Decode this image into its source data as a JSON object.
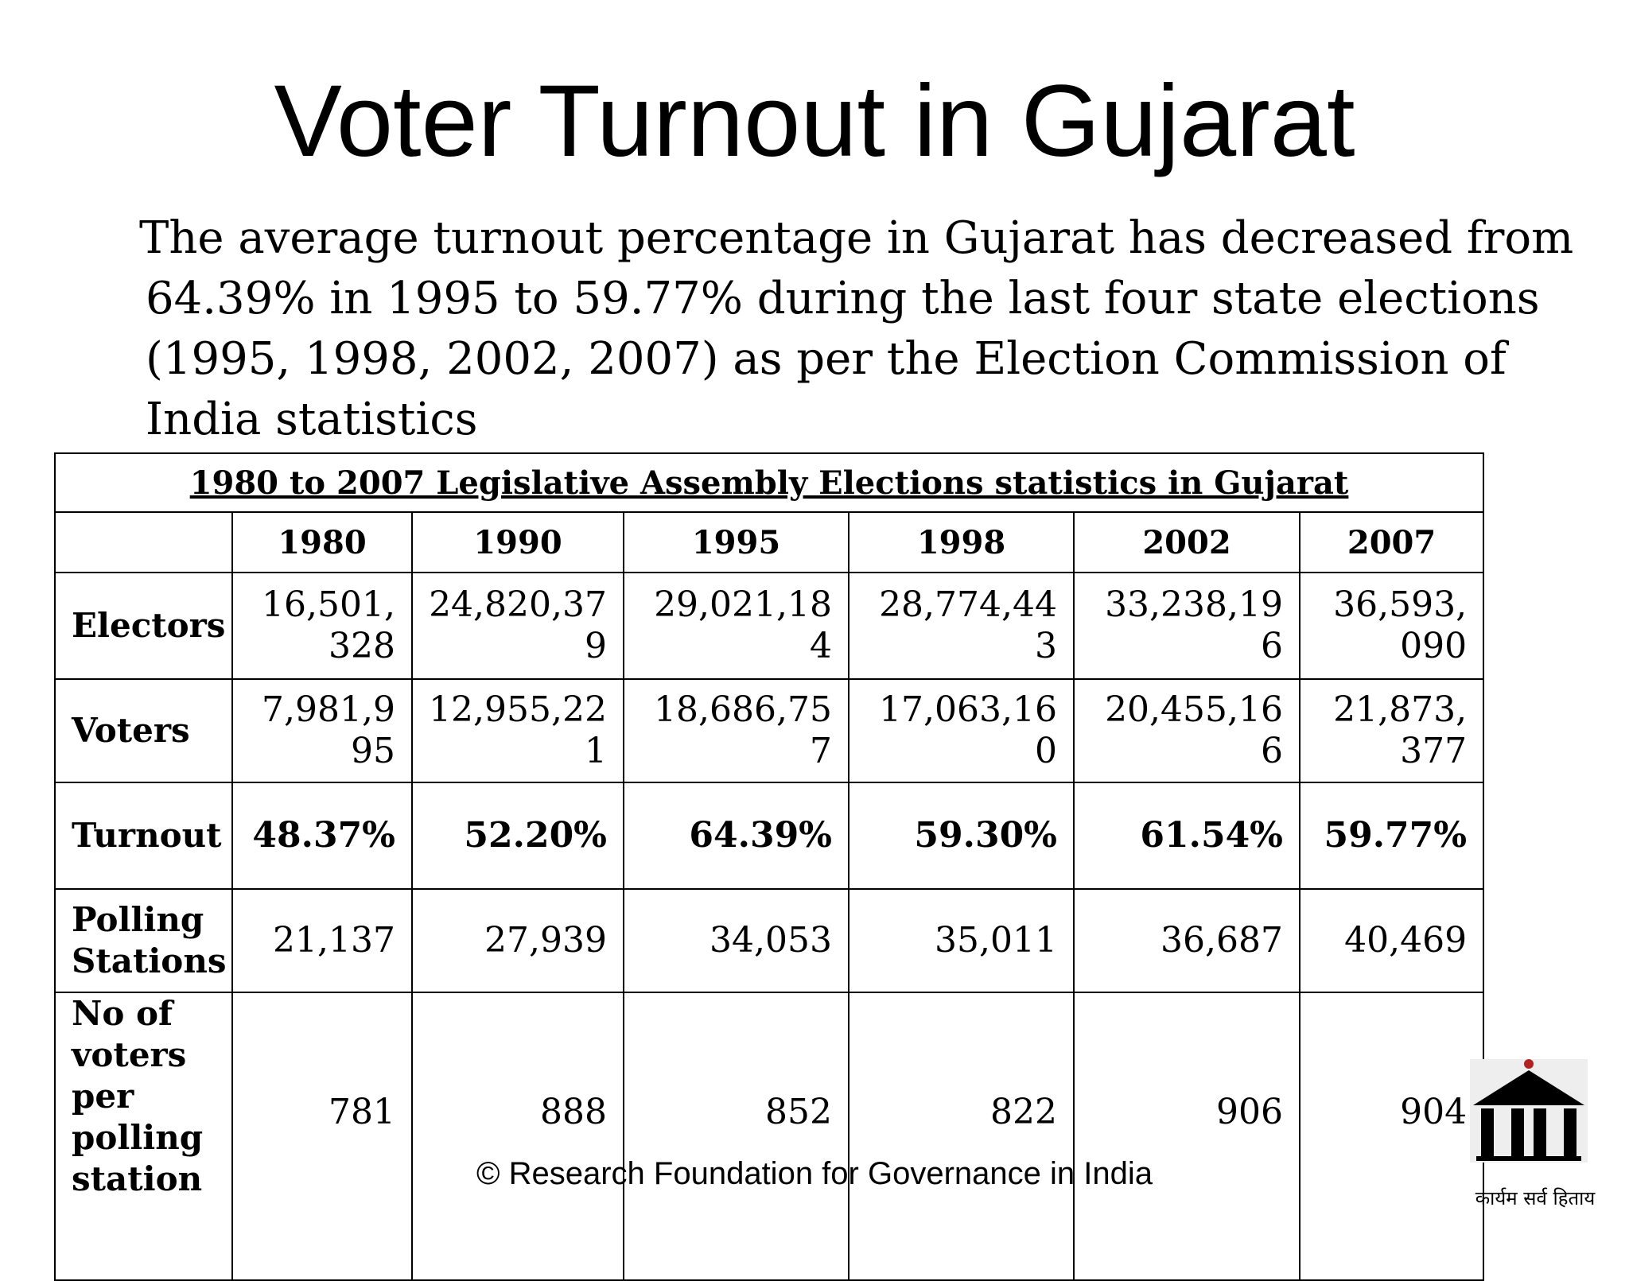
{
  "slide": {
    "title": "Voter Turnout in Gujarat",
    "body_lines": [
      "The average turnout percentage in Gujarat has decreased from",
      "64.39% in 1995 to 59.77% during the last four state elections",
      "(1995, 1998, 2002, 2007) as per the Election Commission of",
      "India statistics"
    ]
  },
  "table": {
    "caption": "1980 to 2007 Legislative Assembly Elections statistics in Gujarat",
    "years": [
      "1980",
      "1990",
      "1995",
      "1998",
      "2002",
      "2007"
    ],
    "rows": [
      {
        "label": "Electors",
        "values": [
          "16,501,328",
          "24,820,379",
          "29,021,184",
          "28,774,443",
          "33,238,196",
          "36,593,090"
        ]
      },
      {
        "label": "Voters",
        "values": [
          "7,981,995",
          "12,955,221",
          "18,686,757",
          "17,063,160",
          "20,455,166",
          "21,873,377"
        ]
      },
      {
        "label": "Turnout",
        "values": [
          "48.37%",
          "52.20%",
          "64.39%",
          "59.30%",
          "61.54%",
          "59.77%"
        ]
      },
      {
        "label": "Polling Stations",
        "values": [
          "21,137",
          "27,939",
          "34,053",
          "35,011",
          "36,687",
          "40,469"
        ]
      },
      {
        "label": "No of voters per polling station",
        "values": [
          "781",
          "888",
          "852",
          "822",
          "906",
          "904"
        ]
      }
    ]
  },
  "footer": {
    "copyright": "© Research Foundation for Governance in India"
  },
  "logo": {
    "motto": "कार्यम सर्व हिताय",
    "icon": "pillared-building-icon"
  }
}
